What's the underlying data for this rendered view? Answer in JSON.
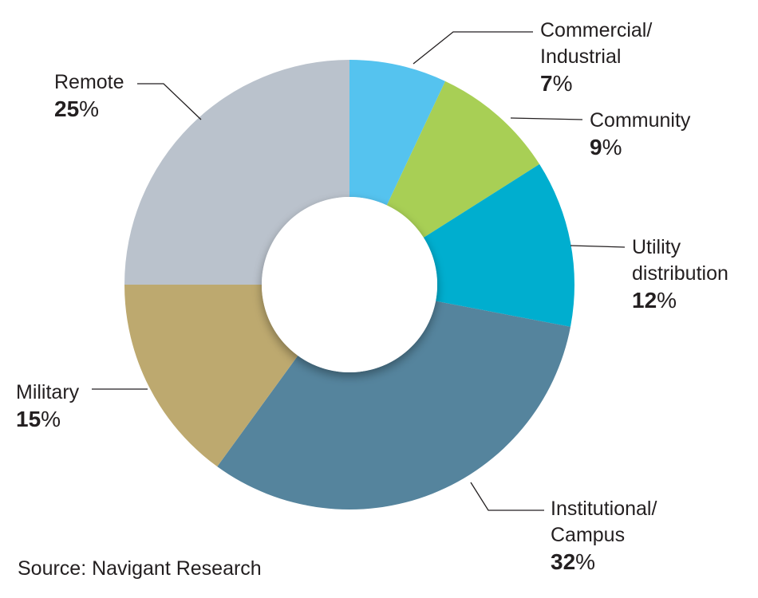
{
  "chart_data": {
    "type": "pie",
    "donut": true,
    "title": "",
    "slices": [
      {
        "name": "Commercial/\nIndustrial",
        "value": 7,
        "color": "#55c3ef"
      },
      {
        "name": "Community",
        "value": 9,
        "color": "#a8cf55"
      },
      {
        "name": "Utility\ndistribution",
        "value": 12,
        "color": "#00aecf"
      },
      {
        "name": "Institutional/\nCampus",
        "value": 32,
        "color": "#55849d"
      },
      {
        "name": "Military",
        "value": 15,
        "color": "#bda96f"
      },
      {
        "name": "Remote",
        "value": 25,
        "color": "#bac2cc"
      }
    ],
    "percent_suffix": "%"
  },
  "source": "Source: Navigant Research"
}
